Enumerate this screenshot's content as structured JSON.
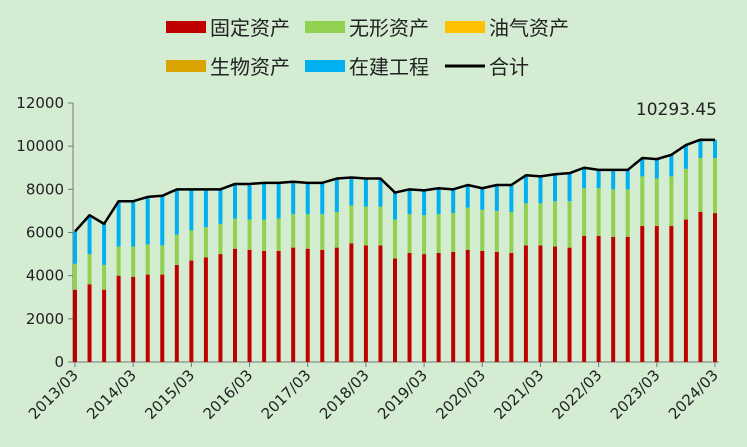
{
  "chart_data": {
    "type": "bar",
    "stacked": true,
    "ylim": [
      0,
      12000
    ],
    "yticks": [
      0,
      2000,
      4000,
      6000,
      8000,
      10000,
      12000
    ],
    "grid": false,
    "legend_position": "top",
    "xtick_labels": [
      "2013/03",
      "2014/03",
      "2015/03",
      "2016/03",
      "2017/03",
      "2018/03",
      "2019/03",
      "2020/03",
      "2021/03",
      "2022/03",
      "2023/03",
      "2024/03"
    ],
    "categories": [
      "2013/03",
      "2013/06",
      "2013/09",
      "2013/12",
      "2014/03",
      "2014/06",
      "2014/09",
      "2014/12",
      "2015/03",
      "2015/06",
      "2015/09",
      "2015/12",
      "2016/03",
      "2016/06",
      "2016/09",
      "2016/12",
      "2017/03",
      "2017/06",
      "2017/09",
      "2017/12",
      "2018/03",
      "2018/06",
      "2018/09",
      "2018/12",
      "2019/03",
      "2019/06",
      "2019/09",
      "2019/12",
      "2020/03",
      "2020/06",
      "2020/09",
      "2020/12",
      "2021/03",
      "2021/06",
      "2021/09",
      "2021/12",
      "2022/03",
      "2022/06",
      "2022/09",
      "2022/12",
      "2023/03",
      "2023/06",
      "2023/09",
      "2023/12",
      "2024/03"
    ],
    "series": [
      {
        "name": "固定资产",
        "kind": "bar",
        "color": "#c00000",
        "values": [
          3350,
          3600,
          3350,
          4000,
          3950,
          4050,
          4050,
          4500,
          4700,
          4850,
          5000,
          5250,
          5200,
          5150,
          5150,
          5300,
          5250,
          5200,
          5300,
          5500,
          5400,
          5400,
          4800,
          5050,
          5000,
          5050,
          5100,
          5200,
          5150,
          5100,
          5050,
          5400,
          5400,
          5350,
          5300,
          5850,
          5850,
          5800,
          5800,
          6300,
          6300,
          6300,
          6600,
          6950,
          6900
        ]
      },
      {
        "name": "无形资产",
        "kind": "bar",
        "color": "#92d050",
        "values": [
          1200,
          1400,
          1150,
          1350,
          1400,
          1400,
          1350,
          1400,
          1400,
          1400,
          1400,
          1400,
          1400,
          1450,
          1500,
          1550,
          1600,
          1650,
          1650,
          1750,
          1800,
          1800,
          1800,
          1800,
          1800,
          1800,
          1800,
          1950,
          1900,
          1900,
          1900,
          1950,
          1950,
          2100,
          2150,
          2200,
          2200,
          2200,
          2200,
          2300,
          2200,
          2300,
          2350,
          2500,
          2550
        ]
      },
      {
        "name": "油气资产",
        "kind": "bar",
        "color": "#ffc000",
        "values": [
          0,
          0,
          0,
          0,
          0,
          0,
          0,
          0,
          0,
          0,
          0,
          0,
          0,
          0,
          0,
          0,
          0,
          0,
          0,
          0,
          0,
          0,
          0,
          0,
          0,
          0,
          0,
          0,
          0,
          0,
          0,
          0,
          0,
          0,
          0,
          0,
          0,
          0,
          0,
          0,
          0,
          0,
          0,
          0,
          0
        ]
      },
      {
        "name": "生物资产",
        "kind": "bar",
        "color": "#d9a300",
        "values": [
          0,
          0,
          0,
          0,
          0,
          0,
          0,
          0,
          0,
          0,
          0,
          0,
          0,
          0,
          0,
          0,
          0,
          0,
          0,
          0,
          0,
          0,
          0,
          0,
          0,
          0,
          0,
          0,
          0,
          0,
          0,
          0,
          0,
          0,
          0,
          0,
          0,
          0,
          0,
          0,
          0,
          0,
          0,
          0,
          0
        ]
      },
      {
        "name": "在建工程",
        "kind": "bar",
        "color": "#00b0f0",
        "values": [
          1500,
          1800,
          1900,
          2100,
          2100,
          2200,
          2300,
          2100,
          1900,
          1750,
          1600,
          1600,
          1650,
          1700,
          1650,
          1500,
          1450,
          1450,
          1550,
          1300,
          1300,
          1300,
          1250,
          1150,
          1150,
          1200,
          1100,
          1050,
          1000,
          1200,
          1250,
          1300,
          1250,
          1250,
          1300,
          950,
          850,
          900,
          900,
          850,
          900,
          1000,
          1100,
          850,
          850
        ]
      },
      {
        "name": "合计",
        "kind": "line",
        "color": "#000000",
        "values": [
          6050,
          6800,
          6400,
          7450,
          7450,
          7650,
          7700,
          8000,
          8000,
          8000,
          8000,
          8250,
          8250,
          8300,
          8300,
          8350,
          8300,
          8300,
          8500,
          8550,
          8500,
          8500,
          7850,
          8000,
          7950,
          8050,
          8000,
          8200,
          8050,
          8200,
          8200,
          8650,
          8600,
          8700,
          8750,
          9000,
          8900,
          8900,
          8900,
          9450,
          9400,
          9600,
          10050,
          10300,
          10293.45
        ]
      }
    ],
    "annotations": [
      {
        "text": "10293.45"
      }
    ]
  }
}
